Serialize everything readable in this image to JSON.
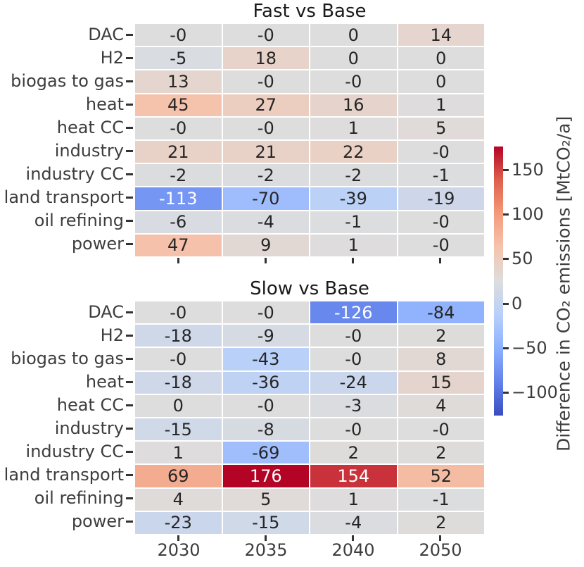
{
  "chart_data": {
    "type": "heatmap",
    "categories_x": [
      "2030",
      "2035",
      "2040",
      "2050"
    ],
    "categories_y": [
      "DAC",
      "H2",
      "biogas to gas",
      "heat",
      "heat CC",
      "industry",
      "industry CC",
      "land transport",
      "oil refining",
      "power"
    ],
    "panels": [
      {
        "title": "Fast vs Base",
        "values": [
          [
            "-0",
            "-0",
            "0",
            "14"
          ],
          [
            "-5",
            "18",
            "0",
            "0"
          ],
          [
            "13",
            "-0",
            "-0",
            "0"
          ],
          [
            "45",
            "27",
            "16",
            "1"
          ],
          [
            "-0",
            "-0",
            "1",
            "5"
          ],
          [
            "21",
            "21",
            "22",
            "-0"
          ],
          [
            "-2",
            "-2",
            "-2",
            "-1"
          ],
          [
            "-113",
            "-70",
            "-39",
            "-19"
          ],
          [
            "-6",
            "-4",
            "-1",
            "-0"
          ],
          [
            "47",
            "9",
            "1",
            "-0"
          ]
        ]
      },
      {
        "title": "Slow vs Base",
        "values": [
          [
            "-0",
            "-0",
            "-126",
            "-84"
          ],
          [
            "-18",
            "-9",
            "-0",
            "2"
          ],
          [
            "-0",
            "-43",
            "-0",
            "8"
          ],
          [
            "-18",
            "-36",
            "-24",
            "15"
          ],
          [
            "0",
            "-0",
            "-3",
            "4"
          ],
          [
            "-15",
            "-8",
            "-0",
            "-0"
          ],
          [
            "1",
            "-69",
            "2",
            "2"
          ],
          [
            "69",
            "176",
            "154",
            "52"
          ],
          [
            "4",
            "5",
            "1",
            "-1"
          ],
          [
            "-23",
            "-15",
            "-4",
            "2"
          ]
        ]
      }
    ],
    "colorbar": {
      "label": "Difference in CO₂ emissions [MtCO₂/a]",
      "tick_labels": [
        "150",
        "100",
        "50",
        "0",
        "−50",
        "−100"
      ],
      "tick_values": [
        150,
        100,
        50,
        0,
        -50,
        -100
      ],
      "vmin": -126,
      "vmax": 176
    },
    "color_norm": {
      "center": 0,
      "color_vmin": -176,
      "color_vmax": 176
    },
    "legend_position": "right",
    "grid": false
  },
  "colors": {
    "background": "#ffffff",
    "annotation_text": "#262626",
    "annotation_text_light": "#ffffff",
    "tick_label_text": "#3d3d3d",
    "title_text": "#1a1a1a",
    "cmap_name": "coolwarm",
    "cmap_anchors": [
      {
        "t": 0.0,
        "color": "#3b4cc0"
      },
      {
        "t": 0.125,
        "color": "#6282ea"
      },
      {
        "t": 0.25,
        "color": "#8db0fe"
      },
      {
        "t": 0.375,
        "color": "#b8d0f9"
      },
      {
        "t": 0.5,
        "color": "#dddddd"
      },
      {
        "t": 0.625,
        "color": "#f5c4ad"
      },
      {
        "t": 0.75,
        "color": "#f49a7b"
      },
      {
        "t": 0.875,
        "color": "#de604d"
      },
      {
        "t": 1.0,
        "color": "#b40426"
      }
    ]
  }
}
